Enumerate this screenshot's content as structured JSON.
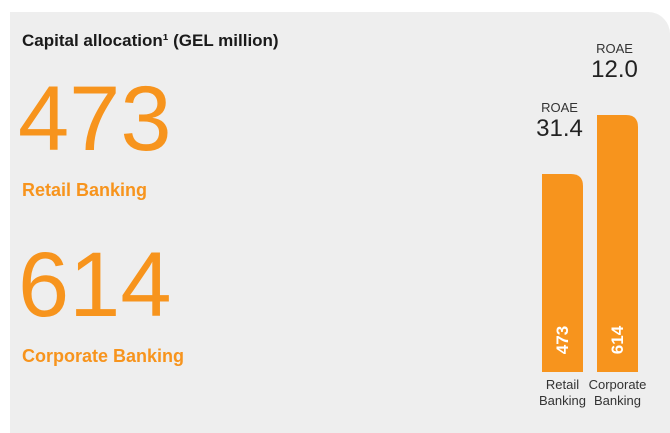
{
  "chart_data": {
    "type": "bar",
    "title": "Capital allocation¹ (GEL million)",
    "categories": [
      "Retail Banking",
      "Corporate Banking"
    ],
    "values": [
      473,
      614
    ],
    "color": "#f7941d",
    "roae": {
      "name": "ROAE",
      "values": [
        31.4,
        12.0
      ],
      "value_labels": [
        "31.4",
        "12.0"
      ]
    }
  }
}
